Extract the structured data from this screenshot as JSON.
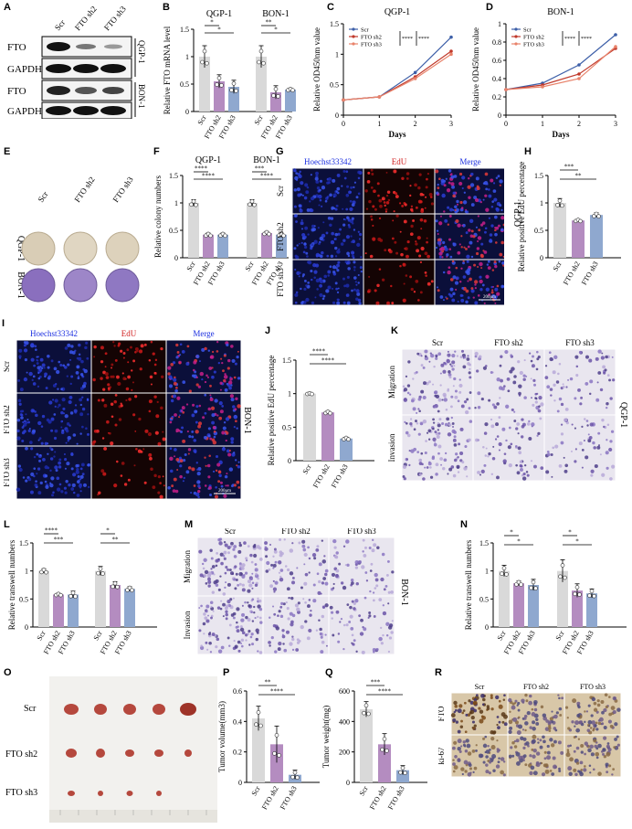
{
  "panels": {
    "A": {
      "label": "A",
      "lanes": [
        "Scr",
        "FTO sh2",
        "FTO sh3"
      ],
      "rows": [
        "FTO",
        "GAPDH",
        "FTO",
        "GAPDH"
      ],
      "groups": [
        "QGP-1",
        "BON-1"
      ]
    },
    "B": {
      "label": "B"
    },
    "C": {
      "label": "C"
    },
    "D": {
      "label": "D"
    },
    "E": {
      "label": "E",
      "cols": [
        "Scr",
        "FTO sh2",
        "FTO sh3"
      ],
      "rows": [
        "QGP-1",
        "BON-1"
      ]
    },
    "F": {
      "label": "F"
    },
    "G": {
      "label": "G",
      "cols": [
        "Hoechst33342",
        "EdU",
        "Merge"
      ],
      "rows": [
        "Scr",
        "FTO sh2",
        "FTO sh3"
      ],
      "scale": "200μm"
    },
    "H": {
      "label": "H",
      "side": "QGP-1"
    },
    "I": {
      "label": "I",
      "cols": [
        "Hoechst33342",
        "EdU",
        "Merge"
      ],
      "rows": [
        "Scr",
        "FTO sh2",
        "FTO sh3"
      ],
      "scale": "200μm",
      "side": "BON-1"
    },
    "J": {
      "label": "J"
    },
    "K": {
      "label": "K",
      "cols": [
        "Scr",
        "FTO sh2",
        "FTO sh3"
      ],
      "rows": [
        "Migration",
        "Invasion"
      ],
      "side": "QGP-1"
    },
    "L": {
      "label": "L"
    },
    "M": {
      "label": "M",
      "cols": [
        "Scr",
        "FTO sh2",
        "FTO sh3"
      ],
      "rows": [
        "Migration",
        "Invasion"
      ],
      "side": "BON-1"
    },
    "N": {
      "label": "N"
    },
    "O": {
      "label": "O",
      "rows": [
        "Scr",
        "FTO sh2",
        "FTO sh3"
      ]
    },
    "P": {
      "label": "P"
    },
    "Q": {
      "label": "Q"
    },
    "R": {
      "label": "R",
      "cols": [
        "Scr",
        "FTO sh2",
        "FTO sh3"
      ],
      "rows": [
        "FTO",
        "ki-67"
      ]
    }
  },
  "chart_data": [
    {
      "id": "B",
      "type": "bar",
      "ylabel": "Relative FTO mRNA level",
      "ylim": [
        0,
        1.5
      ],
      "yticks": [
        0.0,
        0.5,
        1.0,
        1.5
      ],
      "groups": [
        "QGP-1",
        "BON-1"
      ],
      "categories": [
        "Scr",
        "FTO sh2",
        "FTO sh3"
      ],
      "values": [
        [
          1.0,
          0.55,
          0.45
        ],
        [
          1.0,
          0.35,
          0.4
        ]
      ],
      "errors": [
        [
          0.2,
          0.12,
          0.12
        ],
        [
          0.2,
          0.12,
          0.02
        ]
      ],
      "significance": [
        [
          "*",
          "*"
        ],
        [
          "**",
          "*"
        ]
      ],
      "colors": [
        "#d9d9d9",
        "#b48cc0",
        "#8fa8cf"
      ]
    },
    {
      "id": "C",
      "type": "line",
      "title": "QGP-1",
      "xlabel": "Days",
      "ylabel": "Relative OD450nm value",
      "x": [
        0,
        1,
        2,
        3
      ],
      "xlim": [
        0,
        3
      ],
      "ylim": [
        0,
        1.5
      ],
      "yticks": [
        0.0,
        0.5,
        1.0,
        1.5
      ],
      "series": [
        {
          "name": "Scr",
          "values": [
            0.25,
            0.3,
            0.7,
            1.28
          ],
          "color": "#3d5fa8"
        },
        {
          "name": "FTO sh2",
          "values": [
            0.25,
            0.3,
            0.63,
            1.05
          ],
          "color": "#c0392b"
        },
        {
          "name": "FTO sh3",
          "values": [
            0.25,
            0.3,
            0.6,
            1.0
          ],
          "color": "#e8836b"
        }
      ],
      "significance": [
        "****",
        "****"
      ]
    },
    {
      "id": "D",
      "type": "line",
      "title": "BON-1",
      "xlabel": "Days",
      "ylabel": "Relative OD450nm value",
      "x": [
        0,
        1,
        2,
        3
      ],
      "xlim": [
        0,
        3
      ],
      "ylim": [
        0,
        1.0
      ],
      "yticks": [
        0.0,
        0.2,
        0.4,
        0.6,
        0.8,
        1.0
      ],
      "series": [
        {
          "name": "Scr",
          "values": [
            0.28,
            0.35,
            0.55,
            0.88
          ],
          "color": "#3d5fa8"
        },
        {
          "name": "FTO sh2",
          "values": [
            0.28,
            0.33,
            0.45,
            0.73
          ],
          "color": "#c0392b"
        },
        {
          "name": "FTO sh3",
          "values": [
            0.28,
            0.31,
            0.4,
            0.75
          ],
          "color": "#e8836b"
        }
      ],
      "significance": [
        "****",
        "****"
      ]
    },
    {
      "id": "F",
      "type": "bar",
      "ylabel": "Relative colony numbers",
      "ylim": [
        0,
        1.5
      ],
      "yticks": [
        0.0,
        0.5,
        1.0,
        1.5
      ],
      "groups": [
        "QGP-1",
        "BON-1"
      ],
      "categories": [
        "Scr",
        "FTO sh2",
        "FTO sh3"
      ],
      "values": [
        [
          1.0,
          0.42,
          0.42
        ],
        [
          1.0,
          0.45,
          0.42
        ]
      ],
      "errors": [
        [
          0.06,
          0.03,
          0.03
        ],
        [
          0.06,
          0.03,
          0.03
        ]
      ],
      "significance": [
        [
          "****",
          "****"
        ],
        [
          "***",
          "****"
        ]
      ],
      "colors": [
        "#d9d9d9",
        "#b48cc0",
        "#8fa8cf"
      ]
    },
    {
      "id": "H",
      "type": "bar",
      "ylabel": "Relative positive EdU percentage",
      "ylim": [
        0,
        1.5
      ],
      "yticks": [
        0.0,
        0.5,
        1.0,
        1.5
      ],
      "categories": [
        "Scr",
        "FTO sh2",
        "FTO sh3"
      ],
      "values": [
        1.0,
        0.68,
        0.78
      ],
      "errors": [
        0.08,
        0.02,
        0.04
      ],
      "significance": [
        "***",
        "**"
      ],
      "colors": [
        "#d9d9d9",
        "#b48cc0",
        "#8fa8cf"
      ]
    },
    {
      "id": "J",
      "type": "bar",
      "ylabel": "Relative positive EdU percentage",
      "ylim": [
        0,
        1.5
      ],
      "yticks": [
        0.0,
        0.5,
        1.0,
        1.5
      ],
      "categories": [
        "Scr",
        "FTO sh2",
        "FTO sh3"
      ],
      "values": [
        1.0,
        0.72,
        0.33
      ],
      "errors": [
        0.01,
        0.02,
        0.02
      ],
      "significance": [
        "****",
        "****"
      ],
      "colors": [
        "#d9d9d9",
        "#b48cc0",
        "#8fa8cf"
      ]
    },
    {
      "id": "L",
      "type": "bar",
      "ylabel": "Relative transwell numbers",
      "ylim": [
        0,
        1.5
      ],
      "yticks": [
        0.0,
        0.5,
        1.0,
        1.5
      ],
      "categories": [
        "Scr",
        "FTO sh2",
        "FTO sh3"
      ],
      "group_count": 2,
      "values": [
        [
          1.0,
          0.58,
          0.58
        ],
        [
          1.0,
          0.75,
          0.68
        ]
      ],
      "errors": [
        [
          0.04,
          0.02,
          0.06
        ],
        [
          0.08,
          0.06,
          0.04
        ]
      ],
      "significance": [
        [
          "****",
          "***"
        ],
        [
          "*",
          "**"
        ]
      ],
      "colors": [
        "#d9d9d9",
        "#b48cc0",
        "#8fa8cf"
      ]
    },
    {
      "id": "N",
      "type": "bar",
      "ylabel": "Relative transwell numbers",
      "ylim": [
        0,
        1.5
      ],
      "yticks": [
        0.0,
        0.5,
        1.0,
        1.5
      ],
      "categories": [
        "Scr",
        "FTO sh2",
        "FTO sh3"
      ],
      "group_count": 2,
      "values": [
        [
          1.0,
          0.78,
          0.75
        ],
        [
          1.0,
          0.65,
          0.6
        ]
      ],
      "errors": [
        [
          0.1,
          0.04,
          0.1
        ],
        [
          0.2,
          0.12,
          0.08
        ]
      ],
      "significance": [
        [
          "*",
          "*"
        ],
        [
          "*",
          "*"
        ]
      ],
      "colors": [
        "#d9d9d9",
        "#b48cc0",
        "#8fa8cf"
      ]
    },
    {
      "id": "P",
      "type": "bar",
      "ylabel": "Tumor volume(mm3)",
      "ylim": [
        0,
        0.6
      ],
      "yticks": [
        0.0,
        0.2,
        0.4,
        0.6
      ],
      "categories": [
        "Scr",
        "FTO sh2",
        "FTO sh3"
      ],
      "values": [
        0.42,
        0.25,
        0.05
      ],
      "errors": [
        0.08,
        0.12,
        0.03
      ],
      "significance": [
        "**",
        "****"
      ],
      "colors": [
        "#d9d9d9",
        "#b48cc0",
        "#8fa8cf"
      ]
    },
    {
      "id": "Q",
      "type": "bar",
      "ylabel": "Tumor  weight(mg)",
      "ylim": [
        0,
        600
      ],
      "yticks": [
        0,
        200,
        400,
        600
      ],
      "categories": [
        "Scr",
        "FTO sh2",
        "FTO sh3"
      ],
      "values": [
        480,
        250,
        80
      ],
      "errors": [
        50,
        70,
        30
      ],
      "significance": [
        "***",
        "****"
      ],
      "colors": [
        "#d9d9d9",
        "#b48cc0",
        "#8fa8cf"
      ]
    }
  ]
}
